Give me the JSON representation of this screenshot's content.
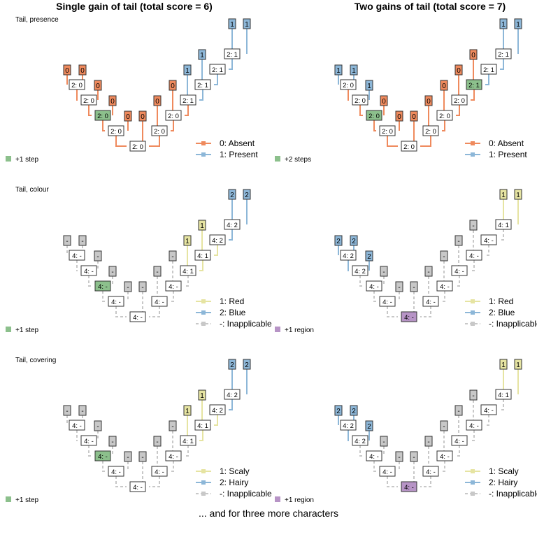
{
  "column_titles": [
    "Single gain of tail (total score = 6)",
    "Two gains of tail (total score = 7)"
  ],
  "footer": "... and for three more characters",
  "colors": {
    "absent": "#ef8a5d",
    "present": "#8db7d8",
    "red": "#e6e4a2",
    "inapplicable": "#c8c8c8",
    "step": "#8cc08c",
    "region": "#b794c6"
  },
  "rows": [
    {
      "label": "Tail, presence",
      "legend": [
        {
          "text": "0: Absent",
          "color": "#ef8a5d",
          "dashed": false
        },
        {
          "text": "1: Present",
          "color": "#8db7d8",
          "dashed": false
        }
      ],
      "panels": [
        {
          "tips": [
            "0",
            "0",
            "0",
            "0",
            "0",
            "0",
            "0",
            "0",
            "1",
            "1",
            "1",
            "1"
          ],
          "nodes": [
            "2: 0",
            "2: 0",
            "2: 0",
            "2: 0",
            "2: 0",
            "2: 0",
            "2: 0",
            "2: 1",
            "2: 1",
            "2: 1",
            "2: 1"
          ],
          "highlight": {
            "node": 2,
            "kind": "step"
          },
          "badge": {
            "kind": "step",
            "text": "+1 step"
          }
        },
        {
          "tips": [
            "1",
            "1",
            "1",
            "0",
            "0",
            "0",
            "0",
            "0",
            "0",
            "0",
            "1",
            "1"
          ],
          "nodes": [
            "2: 0",
            "2: 0",
            "2: 0",
            "2: 0",
            "2: 0",
            "2: 0",
            "2: 0",
            "2: 0",
            "2: 1",
            "2: 1",
            "2: 1"
          ],
          "highlight": {
            "node": 8,
            "kind": "step"
          },
          "highlight2": {
            "node": 2,
            "kind": "step"
          },
          "badge": {
            "kind": "step",
            "text": "+2 steps"
          }
        }
      ]
    },
    {
      "label": "Tail, colour",
      "legend": [
        {
          "text": "1: Red",
          "color": "#e6e4a2",
          "dashed": false
        },
        {
          "text": "2: Blue",
          "color": "#8db7d8",
          "dashed": false
        },
        {
          "text": "-: Inapplicable",
          "color": "#c8c8c8",
          "dashed": true
        }
      ],
      "panels": [
        {
          "tips": [
            "-",
            "-",
            "-",
            "-",
            "-",
            "-",
            "-",
            "-",
            "1",
            "1",
            "2",
            "2"
          ],
          "nodes": [
            "4: -",
            "4: -",
            "4: -",
            "4: -",
            "4: -",
            "4: -",
            "4: -",
            "4: 1",
            "4: 1",
            "4: 2",
            "4: 2"
          ],
          "highlight": {
            "node": 2,
            "kind": "step"
          },
          "badge": {
            "kind": "step",
            "text": "+1 step"
          }
        },
        {
          "tips": [
            "2",
            "2",
            "2",
            "-",
            "-",
            "-",
            "-",
            "-",
            "-",
            "-",
            "1",
            "1"
          ],
          "nodes": [
            "4: 2",
            "4: 2",
            "4: -",
            "4: -",
            "4: -",
            "4: -",
            "4: -",
            "4: -",
            "4: -",
            "4: -",
            "4: 1"
          ],
          "highlight": {
            "node": 4,
            "kind": "region"
          },
          "badge": {
            "kind": "region",
            "text": "+1 region"
          }
        }
      ]
    },
    {
      "label": "Tail, covering",
      "legend": [
        {
          "text": "1: Scaly",
          "color": "#e6e4a2",
          "dashed": false
        },
        {
          "text": "2: Hairy",
          "color": "#8db7d8",
          "dashed": false
        },
        {
          "text": "-: Inapplicable",
          "color": "#c8c8c8",
          "dashed": true
        }
      ],
      "panels": [
        {
          "tips": [
            "-",
            "-",
            "-",
            "-",
            "-",
            "-",
            "-",
            "-",
            "1",
            "1",
            "2",
            "2"
          ],
          "nodes": [
            "4: -",
            "4: -",
            "4: -",
            "4: -",
            "4: -",
            "4: -",
            "4: -",
            "4: 1",
            "4: 1",
            "4: 2",
            "4: 2"
          ],
          "highlight": {
            "node": 2,
            "kind": "step"
          },
          "badge": {
            "kind": "step",
            "text": "+1 step"
          }
        },
        {
          "tips": [
            "2",
            "2",
            "2",
            "-",
            "-",
            "-",
            "-",
            "-",
            "-",
            "-",
            "1",
            "1"
          ],
          "nodes": [
            "4: 2",
            "4: 2",
            "4: -",
            "4: -",
            "4: -",
            "4: -",
            "4: -",
            "4: -",
            "4: -",
            "4: -",
            "4: 1"
          ],
          "highlight": {
            "node": 4,
            "kind": "region"
          },
          "badge": {
            "kind": "region",
            "text": "+1 region"
          }
        }
      ]
    }
  ]
}
